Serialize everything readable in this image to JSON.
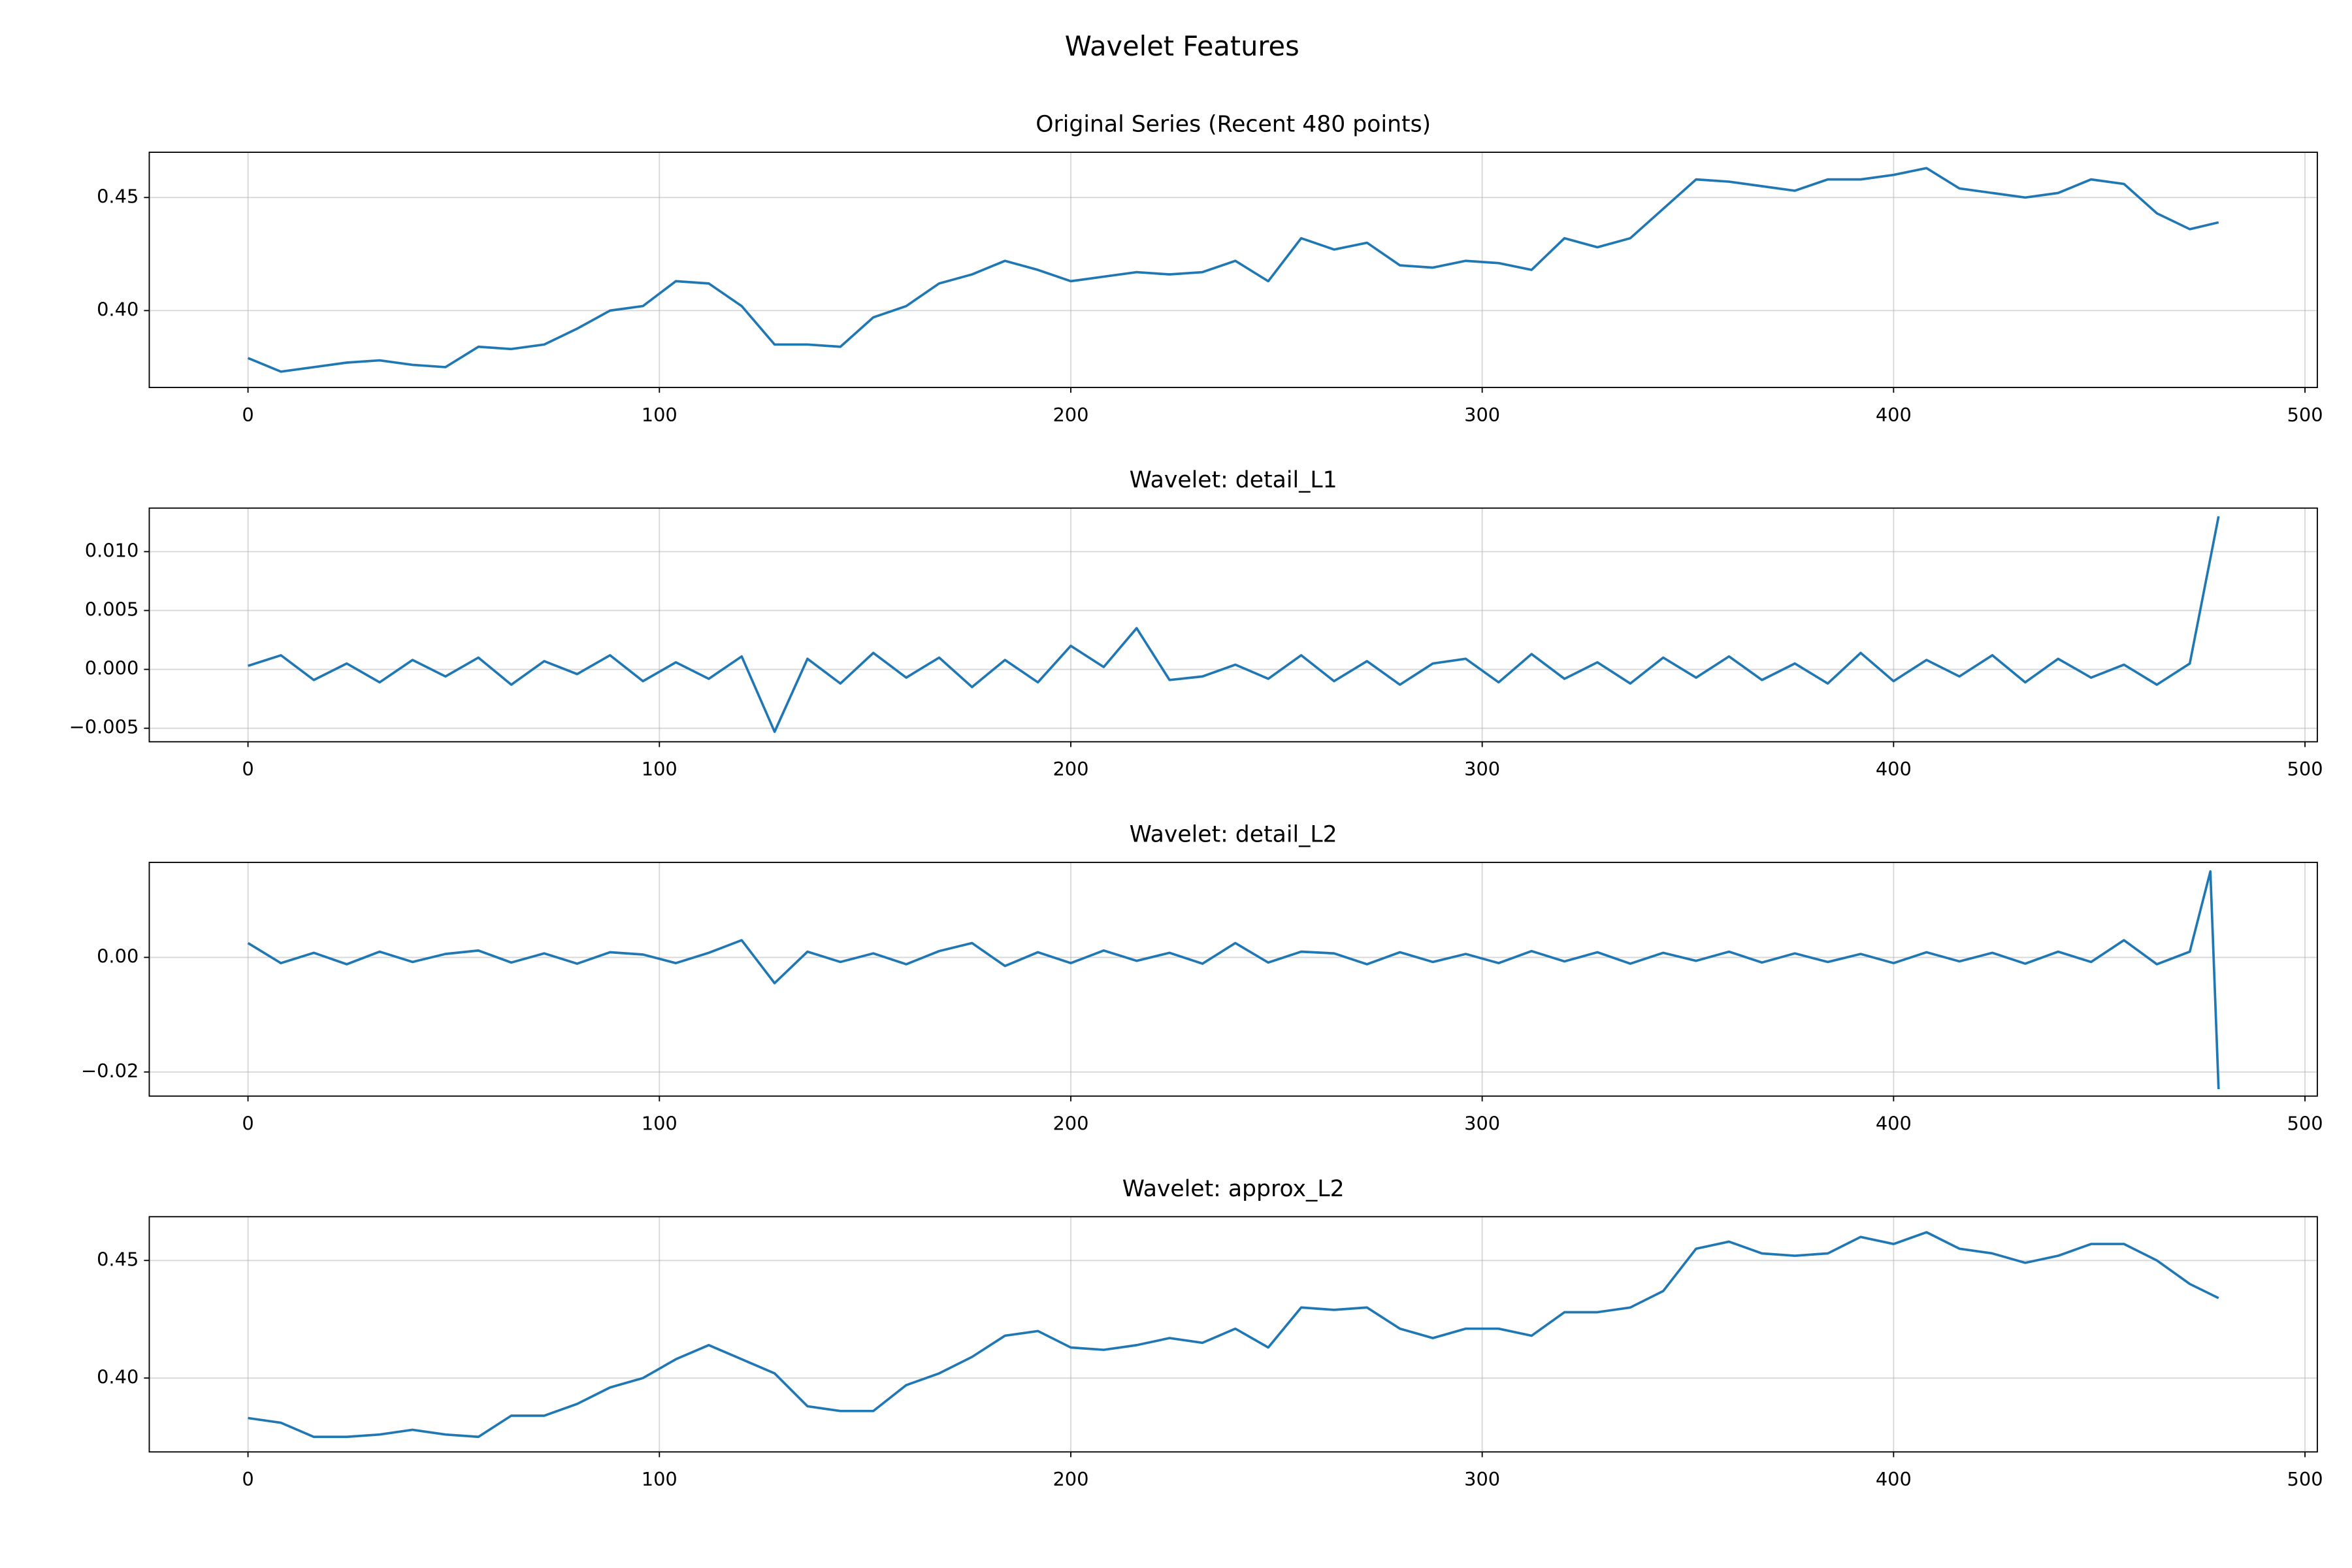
{
  "title": "Wavelet Features",
  "chart_data": [
    {
      "type": "line",
      "title": "Original Series (Recent 480 points)",
      "color": "#1f77b4",
      "grid": true,
      "x": [
        0,
        8,
        16,
        24,
        32,
        40,
        48,
        56,
        64,
        72,
        80,
        88,
        96,
        104,
        112,
        120,
        128,
        136,
        144,
        152,
        160,
        168,
        176,
        184,
        192,
        200,
        208,
        216,
        224,
        232,
        240,
        248,
        256,
        264,
        272,
        280,
        288,
        296,
        304,
        312,
        320,
        328,
        336,
        344,
        352,
        360,
        368,
        376,
        384,
        392,
        400,
        408,
        416,
        424,
        432,
        440,
        448,
        456,
        464,
        472,
        479
      ],
      "values": [
        0.379,
        0.373,
        0.375,
        0.377,
        0.378,
        0.376,
        0.375,
        0.384,
        0.383,
        0.385,
        0.392,
        0.4,
        0.402,
        0.413,
        0.412,
        0.402,
        0.385,
        0.385,
        0.384,
        0.397,
        0.402,
        0.412,
        0.416,
        0.422,
        0.418,
        0.413,
        0.415,
        0.417,
        0.416,
        0.417,
        0.422,
        0.413,
        0.432,
        0.427,
        0.43,
        0.42,
        0.419,
        0.422,
        0.421,
        0.418,
        0.432,
        0.428,
        0.432,
        0.445,
        0.458,
        0.457,
        0.455,
        0.453,
        0.458,
        0.458,
        0.46,
        0.463,
        0.454,
        0.452,
        0.45,
        0.452,
        0.458,
        0.456,
        0.443,
        0.436,
        0.439
      ],
      "xlim": [
        -24,
        503
      ],
      "xticks": [
        0,
        100,
        200,
        300,
        400,
        500
      ],
      "ylim": [
        0.366,
        0.47
      ],
      "yticks": [
        {
          "value": 0.4,
          "label": "0.40"
        },
        0.45
      ]
    },
    {
      "type": "line",
      "title": "Wavelet: detail_L1",
      "color": "#1f77b4",
      "grid": true,
      "x": [
        0,
        8,
        16,
        24,
        32,
        40,
        48,
        56,
        64,
        72,
        80,
        88,
        96,
        104,
        112,
        120,
        128,
        136,
        144,
        152,
        160,
        168,
        176,
        184,
        192,
        200,
        208,
        216,
        224,
        232,
        240,
        248,
        256,
        264,
        272,
        280,
        288,
        296,
        304,
        312,
        320,
        328,
        336,
        344,
        352,
        360,
        368,
        376,
        384,
        392,
        400,
        408,
        416,
        424,
        432,
        440,
        448,
        456,
        464,
        472,
        479
      ],
      "values": [
        0.0003,
        0.0012,
        -0.0009,
        0.0005,
        -0.0011,
        0.0008,
        -0.0006,
        0.001,
        -0.0013,
        0.0007,
        -0.0004,
        0.0012,
        -0.001,
        0.0006,
        -0.0008,
        0.0011,
        -0.0053,
        0.0009,
        -0.0012,
        0.0014,
        -0.0007,
        0.001,
        -0.0015,
        0.0008,
        -0.0011,
        0.002,
        0.0002,
        0.0035,
        -0.0009,
        -0.0006,
        0.0004,
        -0.0008,
        0.0012,
        -0.001,
        0.0007,
        -0.0013,
        0.0005,
        0.0009,
        -0.0011,
        0.0013,
        -0.0008,
        0.0006,
        -0.0012,
        0.001,
        -0.0007,
        0.0011,
        -0.0009,
        0.0005,
        -0.0012,
        0.0014,
        -0.001,
        0.0008,
        -0.0006,
        0.0012,
        -0.0011,
        0.0009,
        -0.0007,
        0.0004,
        -0.0013,
        0.0005,
        0.013
      ],
      "xlim": [
        -24,
        503
      ],
      "xticks": [
        0,
        100,
        200,
        300,
        400,
        500
      ],
      "ylim": [
        -0.00615,
        0.0137
      ],
      "yticks": [
        {
          "value": -0.005,
          "label": "−0.005"
        },
        {
          "value": 0,
          "label": "0.000"
        },
        0.005,
        {
          "value": 0.01,
          "label": "0.010"
        }
      ]
    },
    {
      "type": "line",
      "title": "Wavelet: detail_L2",
      "color": "#1f77b4",
      "grid": true,
      "x": [
        0,
        8,
        16,
        24,
        32,
        40,
        48,
        56,
        64,
        72,
        80,
        88,
        96,
        104,
        112,
        120,
        128,
        136,
        144,
        152,
        160,
        168,
        176,
        184,
        192,
        200,
        208,
        216,
        224,
        232,
        240,
        248,
        256,
        264,
        272,
        280,
        288,
        296,
        304,
        312,
        320,
        328,
        336,
        344,
        352,
        360,
        368,
        376,
        384,
        392,
        400,
        408,
        416,
        424,
        432,
        440,
        448,
        456,
        464,
        472,
        477,
        479
      ],
      "values": [
        0.0025,
        -0.001,
        0.0008,
        -0.0012,
        0.001,
        -0.0008,
        0.0006,
        0.0012,
        -0.0009,
        0.0007,
        -0.0011,
        0.0009,
        0.0005,
        -0.001,
        0.0008,
        0.003,
        -0.0045,
        0.001,
        -0.0008,
        0.0007,
        -0.0012,
        0.0011,
        0.0025,
        -0.0015,
        0.0009,
        -0.001,
        0.0012,
        -0.0006,
        0.0008,
        -0.0011,
        0.0025,
        -0.0009,
        0.001,
        0.0007,
        -0.0012,
        0.0009,
        -0.0008,
        0.0006,
        -0.001,
        0.0011,
        -0.0007,
        0.0009,
        -0.0011,
        0.0008,
        -0.0006,
        0.001,
        -0.0009,
        0.0007,
        -0.0008,
        0.0006,
        -0.001,
        0.0009,
        -0.0007,
        0.0008,
        -0.0011,
        0.001,
        -0.0008,
        0.003,
        -0.0012,
        0.001,
        0.015,
        -0.023
      ],
      "xlim": [
        -24,
        503
      ],
      "xticks": [
        0,
        100,
        200,
        300,
        400,
        500
      ],
      "ylim": [
        -0.02421,
        0.01658
      ],
      "yticks": [
        {
          "value": -0.02,
          "label": "−0.02"
        },
        {
          "value": 0,
          "label": "0.00"
        }
      ]
    },
    {
      "type": "line",
      "title": "Wavelet: approx_L2",
      "color": "#1f77b4",
      "grid": true,
      "x": [
        0,
        8,
        16,
        24,
        32,
        40,
        48,
        56,
        64,
        72,
        80,
        88,
        96,
        104,
        112,
        120,
        128,
        136,
        144,
        152,
        160,
        168,
        176,
        184,
        192,
        200,
        208,
        216,
        224,
        232,
        240,
        248,
        256,
        264,
        272,
        280,
        288,
        296,
        304,
        312,
        320,
        328,
        336,
        344,
        352,
        360,
        368,
        376,
        384,
        392,
        400,
        408,
        416,
        424,
        432,
        440,
        448,
        456,
        464,
        472,
        479
      ],
      "values": [
        0.383,
        0.381,
        0.375,
        0.375,
        0.376,
        0.378,
        0.376,
        0.375,
        0.384,
        0.384,
        0.389,
        0.396,
        0.4,
        0.408,
        0.414,
        0.408,
        0.402,
        0.388,
        0.386,
        0.386,
        0.397,
        0.402,
        0.409,
        0.418,
        0.42,
        0.413,
        0.412,
        0.414,
        0.417,
        0.415,
        0.421,
        0.413,
        0.43,
        0.429,
        0.43,
        0.421,
        0.417,
        0.421,
        0.421,
        0.418,
        0.428,
        0.428,
        0.43,
        0.437,
        0.455,
        0.458,
        0.453,
        0.452,
        0.453,
        0.46,
        0.457,
        0.462,
        0.455,
        0.453,
        0.449,
        0.452,
        0.457,
        0.457,
        0.45,
        0.44,
        0.434
      ],
      "xlim": [
        -24,
        503
      ],
      "xticks": [
        0,
        100,
        200,
        300,
        400,
        500
      ],
      "ylim": [
        0.3686,
        0.4686
      ],
      "yticks": [
        {
          "value": 0.4,
          "label": "0.40"
        },
        0.45
      ]
    }
  ]
}
